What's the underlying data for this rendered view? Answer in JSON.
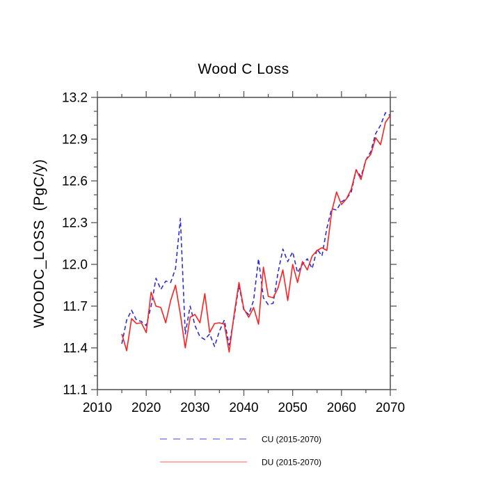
{
  "chart_data": {
    "type": "line",
    "title": "Wood C Loss",
    "ylabel": "WOODC_LOSS  (PgC/y)",
    "xlim": [
      2010,
      2070
    ],
    "ylim": [
      11.1,
      13.2
    ],
    "grid": false,
    "x_major_ticks": [
      2010,
      2020,
      2030,
      2040,
      2050,
      2060,
      2070
    ],
    "x_minor_ticks": [
      2015,
      2025,
      2035,
      2045,
      2055,
      2065
    ],
    "y_major_ticks": [
      11.1,
      11.4,
      11.7,
      12.0,
      12.3,
      12.6,
      12.9,
      13.2
    ],
    "y_minor_ticks": [
      11.2,
      11.3,
      11.5,
      11.6,
      11.8,
      11.9,
      12.1,
      12.2,
      12.4,
      12.5,
      12.7,
      12.8,
      13.0,
      13.1
    ],
    "x": [
      2015,
      2016,
      2017,
      2018,
      2019,
      2020,
      2021,
      2022,
      2023,
      2024,
      2025,
      2026,
      2027,
      2028,
      2029,
      2030,
      2031,
      2032,
      2033,
      2034,
      2035,
      2036,
      2037,
      2038,
      2039,
      2040,
      2041,
      2042,
      2043,
      2044,
      2045,
      2046,
      2047,
      2048,
      2049,
      2050,
      2051,
      2052,
      2053,
      2054,
      2055,
      2056,
      2057,
      2058,
      2059,
      2060,
      2061,
      2062,
      2063,
      2064,
      2065,
      2066,
      2067,
      2068,
      2069,
      2070
    ],
    "series": [
      {
        "name": "CU",
        "label": "CU (2015-2070)",
        "color": "#2c2cd8",
        "legend_color": "#8080e8",
        "style": "dashed",
        "values": [
          11.43,
          11.6,
          11.67,
          11.6,
          11.59,
          11.56,
          11.7,
          11.9,
          11.82,
          11.88,
          11.87,
          11.97,
          12.33,
          11.5,
          11.7,
          11.56,
          11.48,
          11.46,
          11.5,
          11.41,
          11.52,
          11.6,
          11.42,
          11.62,
          11.85,
          11.67,
          11.64,
          11.74,
          12.04,
          11.76,
          11.71,
          11.72,
          11.94,
          12.11,
          12.02,
          12.09,
          11.94,
          12.0,
          12.04,
          11.97,
          12.11,
          12.06,
          12.26,
          12.4,
          12.39,
          12.45,
          12.47,
          12.52,
          12.68,
          12.63,
          12.75,
          12.81,
          12.94,
          13.0,
          13.09,
          13.07
        ]
      },
      {
        "name": "DU",
        "label": "DU (2015-2070)",
        "color": "#ff2020",
        "legend_color": "#ff9090",
        "style": "solid",
        "values": [
          11.5,
          11.38,
          11.61,
          11.575,
          11.58,
          11.51,
          11.8,
          11.7,
          11.69,
          11.58,
          11.74,
          11.85,
          11.64,
          11.4,
          11.62,
          11.64,
          11.58,
          11.79,
          11.51,
          11.575,
          11.58,
          11.57,
          11.37,
          11.64,
          11.87,
          11.68,
          11.62,
          11.69,
          11.57,
          11.98,
          11.77,
          11.76,
          11.83,
          11.96,
          11.74,
          12.0,
          11.87,
          12.02,
          11.96,
          12.06,
          12.1,
          12.12,
          12.1,
          12.38,
          12.52,
          12.43,
          12.47,
          12.54,
          12.68,
          12.61,
          12.75,
          12.79,
          12.91,
          12.86,
          13.02,
          13.07
        ]
      }
    ],
    "axis_color": "#555555",
    "tick_label_color": "#000000",
    "legend_text_color": "#000000"
  }
}
